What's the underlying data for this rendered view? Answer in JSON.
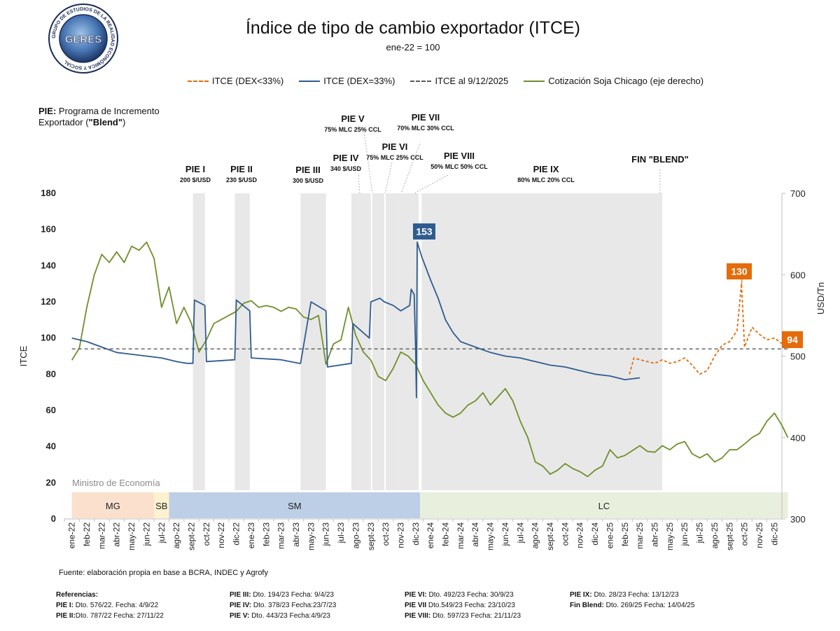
{
  "title": "Índice de tipo de cambio exportador (ITCE)",
  "subtitle": "ene-22 = 100",
  "logo_text": "GERES",
  "logo_ring_text": "GRUPO DE ESTUDIOS DE LA REALIDAD ECONÓMICA Y SOCIAL",
  "pie_note": {
    "bold": "PIE:",
    "text": " Programa de Incremento Exportador (",
    "blend": "\"Blend\"",
    "close": ")"
  },
  "ministry_label": "Ministro de Economía",
  "source": "Fuente: elaboración propia en base a BCRA, INDEC y Agrofy",
  "references": {
    "title": "Referencias:",
    "items": [
      {
        "b": "PIE I:",
        "t": " Dto. 576/22. Fecha: 4/9/22"
      },
      {
        "b": "PIE II:",
        "t": "Dto. 787/22 Fecha: 27/11/22"
      },
      {
        "b": "PIE III:",
        "t": " Dto. 194/23 Fecha: 9/4/23"
      },
      {
        "b": "PIE IV:",
        "t": " Dto. 378/23 Fecha:23/7/23"
      },
      {
        "b": "PIE V:",
        "t": " Dto. 443/23  Fecha:4/9/23"
      },
      {
        "b": "PIE VI:",
        "t": " Dto. 492/23 Fecha: 30/9/23"
      },
      {
        "b": "PIE VII",
        "t": " Dto.549/23 Fecha: 23/10/23"
      },
      {
        "b": "PIE VIII:",
        "t": " Dto. 597/23 Fecha: 21/11/23"
      },
      {
        "b": "PIE IX:",
        "t": " Dto. 28/23 Fecha: 13/12/23"
      },
      {
        "b": "Fin Blend:",
        "t": " Dto. 269/25 Fecha: 14/04/25"
      }
    ]
  },
  "colors": {
    "dex_lt33": "#e46c0a",
    "dex_eq33": "#2f5c8f",
    "ref_line": "#595959",
    "soja": "#6f8f2a",
    "shade": "#e8e8e8",
    "mg": "#fbe0cd",
    "sb": "#fdf2d0",
    "sm": "#bccfe6",
    "lc": "#e9efdd"
  },
  "chart_data": {
    "type": "line",
    "title": "Índice de tipo de cambio exportador (ITCE)",
    "subtitle": "ene-22 = 100",
    "ylabel": "ITCE",
    "y2label": "USD/Tn",
    "ylim": [
      0,
      180
    ],
    "y2lim": [
      300,
      700
    ],
    "yticks": [
      "0",
      "20",
      "40",
      "60",
      "80",
      "100",
      "120",
      "140",
      "160",
      "180"
    ],
    "y2ticks": [
      "300",
      "400",
      "500",
      "600",
      "700"
    ],
    "categories": [
      "ene-22",
      "feb-22",
      "mar-22",
      "abr-22",
      "may-22",
      "jun-22",
      "jul-22",
      "ago-22",
      "sept-22",
      "oct-22",
      "nov-22",
      "dic-22",
      "ene-23",
      "feb-23",
      "mar-23",
      "abr-23",
      "may-23",
      "jun-23",
      "jul-23",
      "ago-23",
      "sept-23",
      "oct-23",
      "nov-23",
      "dic-23",
      "ene-24",
      "feb-24",
      "mar-24",
      "abr-24",
      "may-24",
      "jun-24",
      "jul-24",
      "ago-24",
      "sept-24",
      "oct-24",
      "nov-24",
      "dic-24",
      "ene-25",
      "feb-25",
      "mar-25",
      "abr-25",
      "may-25",
      "jun-25",
      "jul-25",
      "ago-25",
      "sept-25",
      "oct-25",
      "nov-25",
      "dic-25"
    ],
    "legend": [
      "ITCE (DEX<33%)",
      "ITCE (DEX=33%)",
      "ITCE al 9/12/2025",
      "Cotización Soja Chicago (eje derecho)"
    ],
    "reference_value": 94,
    "annotations": [
      {
        "text": "153",
        "x": 23.1,
        "y": 153,
        "color": "#2f5c8f"
      },
      {
        "text": "130",
        "x": 44.8,
        "y": 130,
        "color": "#e46c0a"
      },
      {
        "text": "94",
        "x": 47.5,
        "y": 94,
        "color": "#e46c0a"
      }
    ],
    "pie_periods": [
      {
        "name": "PIE I",
        "detail": "200 $/USD",
        "start": 8.1,
        "end": 8.9
      },
      {
        "name": "PIE II",
        "detail": "230 $/USD",
        "start": 10.9,
        "end": 11.9
      },
      {
        "name": "PIE III",
        "detail": "300 $/USD",
        "start": 15.3,
        "end": 17.0
      },
      {
        "name": "PIE IV",
        "detail": "340 $/USD",
        "start": 18.7,
        "end": 20.0
      },
      {
        "name": "PIE V",
        "detail": "75% MLC 25% CCL",
        "start": 20.1,
        "end": 20.9
      },
      {
        "name": "PIE VI",
        "detail": "75% MLC 25% CCL",
        "start": 21.0,
        "end": 21.8
      },
      {
        "name": "PIE VII",
        "detail": "70% MLC 30% CCL",
        "start": 21.8,
        "end": 22.7
      },
      {
        "name": "PIE VIII",
        "detail": "50% MLC 50% CCL",
        "start": 22.7,
        "end": 23.2
      },
      {
        "name": "PIE IX",
        "detail": "80% MLC 20% CCL",
        "start": 23.4,
        "end": 39.5
      },
      {
        "name": "FIN \"BLEND\"",
        "detail": "",
        "start": 39.5,
        "end": 39.5
      }
    ],
    "ministers": [
      {
        "name": "MG",
        "start": 0,
        "end": 5.5
      },
      {
        "name": "SB",
        "start": 5.5,
        "end": 6.5
      },
      {
        "name": "SM",
        "start": 6.5,
        "end": 23.3
      },
      {
        "name": "LC",
        "start": 23.3,
        "end": 47.9
      }
    ],
    "series": [
      {
        "name": "ITCE (DEX=33%)",
        "axis": "left",
        "x": [
          0,
          1,
          2,
          3,
          4,
          5,
          6,
          7,
          7.7,
          8.1,
          8.2,
          8.9,
          9.0,
          10.9,
          11.0,
          11.9,
          12.0,
          14.0,
          15.2,
          15.3,
          16.0,
          17.0,
          17.1,
          18.7,
          18.8,
          19.9,
          20.0,
          20.6,
          20.9,
          21.5,
          22.0,
          22.6,
          22.7,
          22.9,
          23.0,
          23.05,
          23.1,
          23.4,
          24,
          24.5,
          25,
          25.5,
          26,
          27,
          28,
          29,
          30,
          31,
          32,
          33,
          34,
          35,
          36,
          37,
          38,
          39,
          40,
          41,
          42,
          43,
          44,
          45,
          46,
          47,
          47.9
        ],
        "values": [
          100,
          98,
          95,
          92,
          91,
          90,
          89,
          87,
          86,
          86,
          121,
          118,
          87,
          88,
          121,
          115,
          89,
          88,
          86,
          86,
          120,
          115,
          84,
          86,
          108,
          100,
          120,
          122,
          120,
          118,
          115,
          118,
          127,
          124,
          93,
          67,
          153,
          145,
          132,
          122,
          110,
          103,
          98,
          95,
          92,
          90,
          89,
          87,
          85,
          84,
          82,
          80,
          79,
          77,
          78,
          null,
          null,
          null,
          null,
          null,
          null,
          null,
          null,
          null,
          null
        ]
      },
      {
        "name": "ITCE (DEX<33%)",
        "axis": "left",
        "x": [
          37.3,
          37.6,
          38,
          38.5,
          39,
          39.5,
          40,
          40.5,
          41,
          41.5,
          42,
          42.5,
          43,
          43.5,
          44,
          44.5,
          44.8,
          45,
          45.5,
          46,
          46.5,
          47,
          47.5,
          47.9
        ],
        "values": [
          80,
          89,
          88,
          87,
          86,
          88,
          86,
          87,
          89,
          85,
          80,
          82,
          90,
          96,
          98,
          104,
          130,
          95,
          106,
          102,
          99,
          100,
          97,
          94
        ]
      },
      {
        "name": "ITCE al 9/12/2025",
        "axis": "left",
        "x": [
          0,
          47.9
        ],
        "values": [
          94,
          94
        ]
      },
      {
        "name": "Cotización Soja Chicago (eje derecho)",
        "axis": "right",
        "x": [
          0,
          0.5,
          1,
          1.5,
          2,
          2.5,
          3,
          3.5,
          4,
          4.5,
          5,
          5.5,
          6,
          6.5,
          7,
          7.5,
          8,
          8.5,
          9,
          9.5,
          10,
          10.5,
          11,
          11.5,
          12,
          12.5,
          13,
          13.5,
          14,
          14.5,
          15,
          15.5,
          16,
          16.5,
          17,
          17.5,
          18,
          18.5,
          19,
          19.5,
          20,
          20.5,
          21,
          21.5,
          22,
          22.5,
          23,
          23.5,
          24,
          24.5,
          25,
          25.5,
          26,
          26.5,
          27,
          27.5,
          28,
          28.5,
          29,
          29.5,
          30,
          30.5,
          31,
          31.5,
          32,
          32.5,
          33,
          33.5,
          34,
          34.5,
          35,
          35.5,
          36,
          36.5,
          37,
          37.5,
          38,
          38.5,
          39,
          39.5,
          40,
          40.5,
          41,
          41.5,
          42,
          42.5,
          43,
          43.5,
          44,
          44.5,
          45,
          45.5,
          46,
          46.5,
          47,
          47.5,
          47.9
        ],
        "values": [
          495,
          510,
          560,
          600,
          625,
          615,
          628,
          615,
          635,
          630,
          640,
          620,
          560,
          585,
          540,
          560,
          540,
          505,
          520,
          540,
          545,
          550,
          555,
          565,
          568,
          560,
          562,
          560,
          555,
          560,
          558,
          548,
          545,
          550,
          490,
          515,
          520,
          560,
          525,
          505,
          495,
          475,
          470,
          485,
          505,
          500,
          490,
          470,
          455,
          440,
          430,
          425,
          430,
          440,
          445,
          455,
          440,
          450,
          460,
          445,
          420,
          400,
          370,
          365,
          355,
          360,
          368,
          362,
          358,
          352,
          360,
          365,
          385,
          375,
          378,
          384,
          390,
          383,
          382,
          390,
          385,
          392,
          395,
          380,
          375,
          380,
          370,
          375,
          385,
          385,
          392,
          400,
          405,
          420,
          430,
          415,
          400
        ]
      }
    ]
  }
}
